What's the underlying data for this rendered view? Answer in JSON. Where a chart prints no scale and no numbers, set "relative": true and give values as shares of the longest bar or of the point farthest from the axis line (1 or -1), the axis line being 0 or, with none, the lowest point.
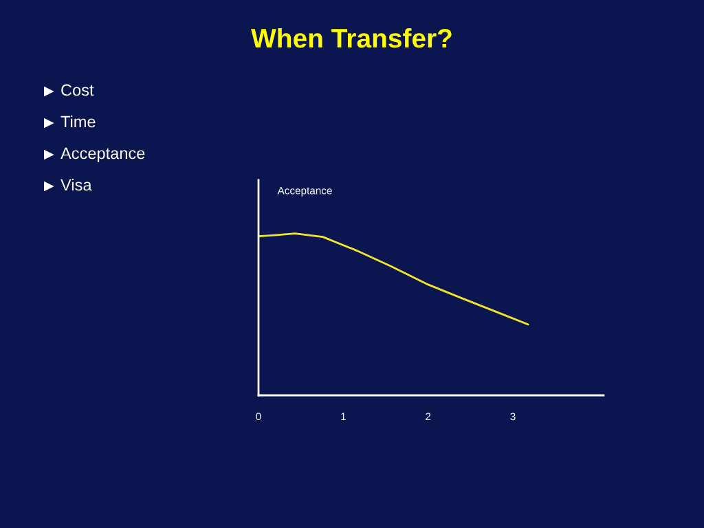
{
  "chart_data": {
    "type": "line",
    "title": "When Transfer?",
    "ylabel": "Acceptance",
    "annotations": [
      "Cost",
      "Time",
      "Acceptance",
      "Visa"
    ],
    "relative": true,
    "x": [
      0,
      0.19,
      0.43,
      0.76,
      1.16,
      1.57,
      1.98,
      2.38,
      2.79,
      3.18
    ],
    "series": [
      {
        "color": "#f2e62a",
        "values": [
          0.983,
          0.99,
          1,
          0.979,
          0.894,
          0.796,
          0.689,
          0.604,
          0.519,
          0.438
        ]
      }
    ],
    "xlim": [
      0,
      4.07
    ],
    "xticks": [
      0,
      1,
      2,
      3
    ],
    "grid": false,
    "marker": "none"
  }
}
